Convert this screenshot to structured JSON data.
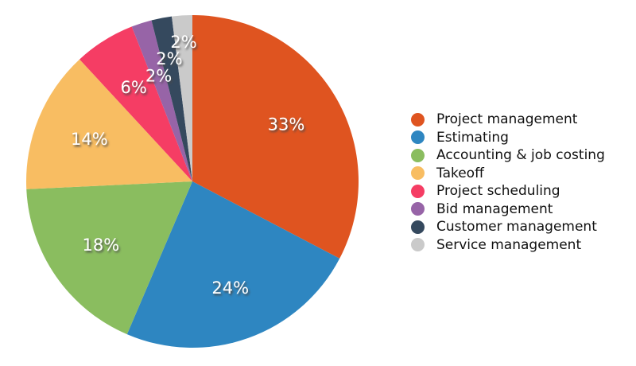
{
  "chart_data": {
    "type": "pie",
    "title": "",
    "legend_position": "right",
    "background_color": "#ffffff",
    "label_color": "#ffffff",
    "legend_text_color": "#111111",
    "start_angle_deg": 0,
    "direction": "clockwise",
    "slices": [
      {
        "label": "Project management",
        "value": 33,
        "display": "33%",
        "color": "#df5420",
        "label_radius": 0.66
      },
      {
        "label": "Estimating",
        "value": 24,
        "display": "24%",
        "color": "#2e86c1",
        "label_radius": 0.68
      },
      {
        "label": "Accounting & job costing",
        "value": 18,
        "display": "18%",
        "color": "#8abd5f",
        "label_radius": 0.67
      },
      {
        "label": "Takeoff",
        "value": 14,
        "display": "14%",
        "color": "#f8bd62",
        "label_radius": 0.67
      },
      {
        "label": "Project scheduling",
        "value": 6,
        "display": "6%",
        "color": "#f53d64",
        "label_radius": 0.665
      },
      {
        "label": "Bid management",
        "value": 2,
        "display": "2%",
        "color": "#9764a7",
        "label_radius": 0.665
      },
      {
        "label": "Customer management",
        "value": 2,
        "display": "2%",
        "color": "#35495e",
        "label_radius": 0.75
      },
      {
        "label": "Service management",
        "value": 2,
        "display": "2%",
        "color": "#cacaca",
        "label_radius": 0.84
      }
    ]
  }
}
